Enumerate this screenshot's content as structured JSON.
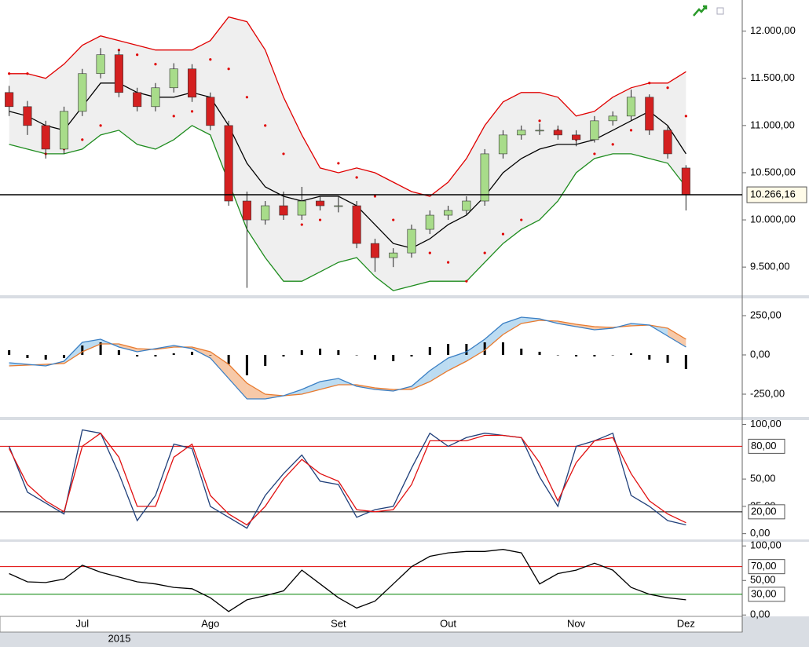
{
  "chart_data": [
    {
      "type": "candlestick",
      "categories": [
        null,
        null,
        null,
        null,
        "Jul",
        null,
        null,
        null,
        null,
        null,
        null,
        "Ago",
        null,
        null,
        null,
        null,
        null,
        null,
        "Set",
        null,
        null,
        null,
        null,
        null,
        "Out",
        null,
        null,
        null,
        null,
        null,
        null,
        "Nov",
        null,
        null,
        null,
        null,
        null,
        "Dez"
      ],
      "year_label": "2015",
      "open": [
        11350,
        11200,
        11000,
        10750,
        11150,
        11550,
        11750,
        11350,
        11200,
        11400,
        11600,
        11300,
        11000,
        10200,
        10000,
        10150,
        10050,
        10200,
        10150,
        10150,
        9750,
        9600,
        9650,
        9900,
        10050,
        10100,
        10200,
        10700,
        10900,
        10950,
        10950,
        10900,
        10850,
        11050,
        11100,
        11300,
        10950,
        10550
      ],
      "high": [
        11420,
        11260,
        11050,
        11200,
        11600,
        11820,
        11800,
        11400,
        11450,
        11660,
        11650,
        11350,
        11050,
        10300,
        10200,
        10300,
        10350,
        10250,
        10250,
        10200,
        9800,
        9700,
        9950,
        10100,
        10150,
        10250,
        10750,
        10950,
        11000,
        11020,
        11000,
        10950,
        11100,
        11150,
        11380,
        11330,
        11000,
        10580
      ],
      "low": [
        11100,
        10900,
        10650,
        10700,
        11100,
        11500,
        11300,
        11150,
        11150,
        11350,
        11250,
        10950,
        10150,
        9280,
        9950,
        10000,
        10000,
        10100,
        10080,
        9700,
        9450,
        9500,
        9600,
        9850,
        10000,
        10050,
        10150,
        10650,
        10850,
        10900,
        10850,
        10780,
        10820,
        11000,
        11050,
        10900,
        10650,
        10100
      ],
      "close": [
        11200,
        11000,
        10750,
        11150,
        11550,
        11750,
        11350,
        11200,
        11400,
        11600,
        11300,
        11000,
        10200,
        10000,
        10150,
        10050,
        10200,
        10150,
        10150,
        9750,
        9600,
        9650,
        9900,
        10050,
        10100,
        10200,
        10700,
        10900,
        10950,
        10950,
        10900,
        10850,
        11050,
        11100,
        11300,
        10950,
        10700,
        10266.16
      ],
      "up_color": "#a8dc8a",
      "down_color": "#d42020",
      "lines": [
        {
          "color": "#e00000",
          "values": [
            11550,
            11550,
            11500,
            11650,
            11850,
            11950,
            11900,
            11850,
            11800,
            11800,
            11800,
            11900,
            12150,
            12100,
            11800,
            11300,
            10900,
            10550,
            10500,
            10550,
            10500,
            10400,
            10300,
            10250,
            10400,
            10650,
            11000,
            11250,
            11350,
            11350,
            11300,
            11100,
            11150,
            11300,
            11400,
            11450,
            11450,
            11570
          ]
        },
        {
          "color": "#1e8c1e",
          "values": [
            10800,
            10750,
            10700,
            10700,
            10750,
            10900,
            10950,
            10800,
            10750,
            10850,
            11000,
            10900,
            10400,
            9900,
            9600,
            9350,
            9350,
            9450,
            9550,
            9600,
            9400,
            9250,
            9300,
            9350,
            9350,
            9350,
            9550,
            9750,
            9900,
            10000,
            10200,
            10500,
            10650,
            10700,
            10700,
            10650,
            10600,
            10350
          ]
        },
        {
          "color": "#000000",
          "values": [
            11150,
            11100,
            11000,
            10950,
            11200,
            11450,
            11450,
            11350,
            11300,
            11300,
            11350,
            11300,
            11000,
            10600,
            10350,
            10250,
            10200,
            10250,
            10250,
            10150,
            9950,
            9750,
            9700,
            9800,
            9950,
            10050,
            10250,
            10500,
            10650,
            10750,
            10800,
            10800,
            10850,
            10950,
            11050,
            11150,
            11000,
            10700
          ]
        }
      ],
      "sar": {
        "color": "#e00000",
        "values": [
          11550,
          11550,
          10700,
          10750,
          10850,
          11000,
          11800,
          11750,
          11650,
          11100,
          11150,
          11700,
          11600,
          11300,
          11000,
          10700,
          9950,
          10000,
          10600,
          10450,
          10250,
          10000,
          9750,
          9650,
          9550,
          9350,
          9650,
          9850,
          10000,
          11050,
          10950,
          10850,
          10700,
          10800,
          10950,
          11450,
          11400,
          11100
        ]
      },
      "last_price": {
        "value": 10266.16,
        "label": "10.266,16"
      },
      "ylim": [
        9210,
        12330
      ],
      "yticks": [
        {
          "value": 9500,
          "label": "9.500,00"
        },
        {
          "value": 10000,
          "label": "10.000,00"
        },
        {
          "value": 10500,
          "label": "10.500,00"
        },
        {
          "value": 11000,
          "label": "11.000,00"
        },
        {
          "value": 11500,
          "label": "11.500,00"
        },
        {
          "value": 12000,
          "label": "12.000,00"
        }
      ]
    },
    {
      "type": "macd",
      "macd": {
        "color": "#3a7fc4",
        "values": [
          -50,
          -60,
          -70,
          -40,
          80,
          100,
          50,
          20,
          40,
          60,
          40,
          -20,
          -150,
          -280,
          -280,
          -260,
          -220,
          -170,
          -150,
          -200,
          -220,
          -230,
          -200,
          -100,
          -20,
          20,
          100,
          200,
          240,
          230,
          200,
          180,
          160,
          170,
          200,
          190,
          120,
          50
        ]
      },
      "signal": {
        "color": "#e87a2e",
        "values": [
          -70,
          -65,
          -60,
          -55,
          20,
          70,
          70,
          40,
          35,
          50,
          50,
          20,
          -60,
          -180,
          -250,
          -260,
          -250,
          -220,
          -190,
          -190,
          -210,
          -220,
          -220,
          -170,
          -100,
          -40,
          30,
          130,
          200,
          220,
          215,
          195,
          180,
          175,
          185,
          190,
          170,
          100
        ]
      },
      "histogram": {
        "color": "#000000",
        "values": [
          30,
          -20,
          -30,
          -20,
          60,
          80,
          30,
          -10,
          -10,
          10,
          20,
          0,
          -60,
          -130,
          -70,
          -10,
          30,
          40,
          30,
          0,
          -30,
          -40,
          -10,
          50,
          70,
          70,
          80,
          80,
          40,
          20,
          0,
          -10,
          -10,
          0,
          10,
          -30,
          -50,
          -90
        ]
      },
      "up_fill": "#bcdcf2",
      "down_fill": "#f7c9a8",
      "ylim": [
        -390,
        360
      ],
      "yticks": [
        {
          "value": 250,
          "label": "250,00"
        },
        {
          "value": 0,
          "label": "0,00"
        },
        {
          "value": -250,
          "label": "-250,00"
        }
      ]
    },
    {
      "type": "line",
      "series": [
        {
          "color": "#1f3f7a",
          "values": [
            80,
            38,
            28,
            18,
            95,
            92,
            55,
            12,
            35,
            82,
            78,
            25,
            15,
            5,
            35,
            55,
            72,
            48,
            45,
            15,
            22,
            25,
            60,
            92,
            80,
            88,
            92,
            90,
            88,
            52,
            25,
            80,
            85,
            92,
            35,
            25,
            12,
            8
          ]
        },
        {
          "color": "#e01010",
          "values": [
            78,
            45,
            30,
            20,
            80,
            92,
            70,
            25,
            25,
            70,
            82,
            35,
            18,
            8,
            25,
            50,
            68,
            55,
            48,
            22,
            20,
            22,
            45,
            85,
            85,
            85,
            90,
            90,
            88,
            65,
            30,
            65,
            85,
            88,
            55,
            30,
            18,
            10
          ]
        }
      ],
      "levels": [
        {
          "value": 80,
          "label": "80,00",
          "color": "#e00000"
        },
        {
          "value": 20,
          "label": "20,00",
          "color": "#000000"
        }
      ],
      "ylim": [
        -6,
        104
      ],
      "yticks": [
        {
          "value": 0,
          "label": "0,00"
        },
        {
          "value": 25,
          "label": "25,00"
        },
        {
          "value": 50,
          "label": "50,00"
        },
        {
          "value": 100,
          "label": "100,00"
        }
      ]
    },
    {
      "type": "line",
      "series": [
        {
          "color": "#000000",
          "values": [
            60,
            48,
            47,
            52,
            72,
            62,
            55,
            48,
            45,
            40,
            38,
            25,
            5,
            22,
            28,
            35,
            65,
            45,
            25,
            10,
            20,
            45,
            70,
            85,
            90,
            92,
            92,
            95,
            90,
            45,
            60,
            65,
            75,
            65,
            40,
            30,
            25,
            22
          ]
        }
      ],
      "levels": [
        {
          "value": 70,
          "label": "70,00",
          "color": "#e00000"
        },
        {
          "value": 30,
          "label": "30,00",
          "color": "#008000"
        }
      ],
      "ylim": [
        -2,
        106
      ],
      "yticks": [
        {
          "value": 0,
          "label": "0,00"
        },
        {
          "value": 50,
          "label": "50,00"
        },
        {
          "value": 100,
          "label": "100,00"
        }
      ]
    }
  ]
}
